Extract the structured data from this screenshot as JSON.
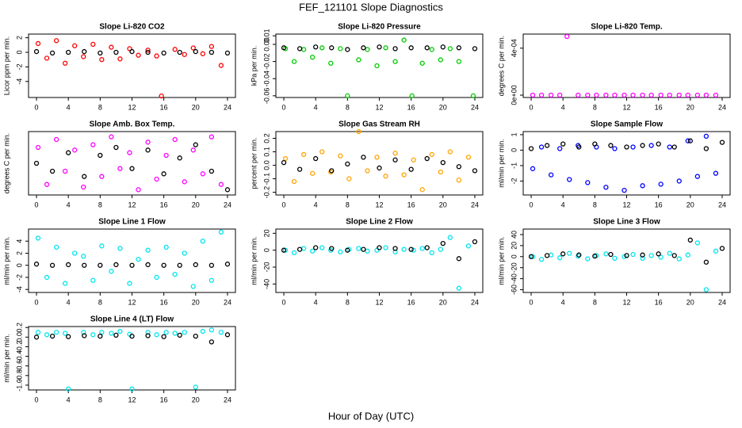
{
  "title": "FEF_121101  Slope Diagnostics",
  "xlabel": "Hour of Day (UTC)",
  "chart_data": [
    {
      "type": "scatter",
      "title": "Slope Li-820 CO2",
      "ylabel": "Licor ppm per min.",
      "xlim": [
        -1,
        25
      ],
      "xticks": [
        0,
        4,
        8,
        12,
        16,
        20,
        24
      ],
      "ylim": [
        -6.2,
        2.5
      ],
      "yticks": [
        -4,
        -2,
        0,
        2
      ],
      "series": [
        {
          "color": "#ff0000",
          "x": [
            0.2,
            1.3,
            2.5,
            3.6,
            4.8,
            5.9,
            7.1,
            8.2,
            9.4,
            10.5,
            11.7,
            12.8,
            14,
            15.1,
            15.7,
            17.4,
            18.6,
            19.7,
            20.9,
            22,
            23.2
          ],
          "values": [
            1.2,
            -0.8,
            1.6,
            -1.5,
            0.9,
            -0.6,
            1.1,
            -1.0,
            0.7,
            -0.9,
            0.5,
            -0.4,
            0.3,
            -0.5,
            -6.0,
            0.4,
            -0.3,
            0.6,
            -0.2,
            0.8,
            -1.8
          ]
        },
        {
          "color": "#000000",
          "x": [
            0,
            2,
            4,
            6,
            8,
            10,
            12,
            14,
            16,
            18,
            20,
            22,
            24
          ],
          "values": [
            0.1,
            -0.1,
            0,
            0.1,
            -0.1,
            0,
            0.1,
            0,
            -0.1,
            0,
            0.1,
            0,
            -0.1
          ]
        }
      ]
    },
    {
      "type": "scatter",
      "title": "Slope Li-820 Pressure",
      "ylabel": "kPa per min.",
      "xlim": [
        -1,
        25
      ],
      "xticks": [
        0,
        4,
        8,
        12,
        16,
        20,
        24
      ],
      "ylim": [
        -0.062,
        0.012
      ],
      "yticks": [
        0.01,
        {
          "value": 0,
          "label": "0.00"
        },
        -0.02,
        -0.04,
        -0.06
      ],
      "series": [
        {
          "color": "#00cc00",
          "x": [
            0.2,
            1.3,
            2.5,
            3.6,
            4.8,
            5.9,
            7.1,
            8.0,
            9.4,
            10.5,
            11.7,
            12.8,
            14,
            15.1,
            16.1,
            17.4,
            18.6,
            19.7,
            20.9,
            22,
            23.8
          ],
          "values": [
            -0.005,
            -0.02,
            -0.006,
            -0.015,
            -0.004,
            -0.022,
            -0.005,
            -0.06,
            -0.018,
            -0.006,
            -0.025,
            -0.004,
            -0.02,
            0.005,
            -0.06,
            -0.022,
            -0.006,
            -0.018,
            -0.005,
            -0.02,
            -0.06
          ]
        },
        {
          "color": "#000000",
          "x": [
            0,
            2,
            4,
            6,
            8,
            10,
            12,
            14,
            16,
            18,
            20,
            22,
            24
          ],
          "values": [
            -0.004,
            -0.005,
            -0.003,
            -0.004,
            -0.006,
            -0.004,
            -0.003,
            -0.005,
            -0.004,
            -0.004,
            -0.003,
            -0.004,
            -0.005
          ]
        }
      ]
    },
    {
      "type": "scatter",
      "title": "Slope Li-820 Temp.",
      "ylabel": "degrees C per min.",
      "xlim": [
        -1,
        25
      ],
      "xticks": [
        0,
        4,
        8,
        12,
        16,
        20,
        24
      ],
      "ylim": [
        -2e-05,
        0.00052
      ],
      "yticks": [
        {
          "value": 0,
          "label": "0e+00"
        },
        {
          "value": 0.0004,
          "label": "4e-04"
        }
      ],
      "series": [
        {
          "color": "#ff00ff",
          "x": [
            0.2,
            1.3,
            2.5,
            3.6,
            4.5,
            5.9,
            7.1,
            8.2,
            9.4,
            10.5,
            11.7,
            12.8,
            14,
            15.1,
            16.3,
            17.4,
            18.6,
            19.7,
            20.9,
            22,
            23.2
          ],
          "values": [
            0,
            0,
            0,
            0,
            0.0005,
            0,
            0,
            0,
            0,
            0,
            0,
            0,
            0,
            0,
            0,
            0,
            0,
            0,
            0,
            0,
            0
          ]
        }
      ]
    },
    {
      "type": "scatter",
      "title": "Slope Amb. Box Temp.",
      "ylabel": "degrees C per min.",
      "xlim": [
        -1,
        25
      ],
      "xticks": [
        0,
        4,
        8,
        12,
        16,
        20,
        24
      ],
      "ylim": [
        -0.12,
        0.12
      ],
      "series": [
        {
          "color": "#ff00ff",
          "x": [
            0.2,
            1.3,
            2.5,
            3.6,
            4.8,
            5.9,
            7.1,
            8.2,
            9.4,
            10.5,
            11.7,
            12.8,
            14,
            15.1,
            16.3,
            17.4,
            18.6,
            19.7,
            20.9,
            22,
            23.2
          ],
          "values": [
            0.06,
            -0.08,
            0.09,
            -0.03,
            0.05,
            -0.09,
            0.07,
            -0.05,
            0.1,
            -0.02,
            0.04,
            -0.1,
            0.08,
            -0.06,
            0.03,
            0.09,
            -0.07,
            0.05,
            -0.04,
            0.1,
            -0.08
          ]
        },
        {
          "color": "#000000",
          "x": [
            0,
            2,
            4,
            6,
            8,
            10,
            12,
            14,
            16,
            18,
            20,
            22,
            24
          ],
          "values": [
            0,
            -0.03,
            0.04,
            -0.05,
            0.03,
            0.06,
            -0.02,
            0.05,
            -0.04,
            0.02,
            0.07,
            -0.03,
            -0.1
          ]
        }
      ]
    },
    {
      "type": "scatter",
      "title": "Slope Gas Stream RH",
      "ylabel": "percent per min.",
      "xlim": [
        -1,
        25
      ],
      "xticks": [
        0,
        4,
        8,
        12,
        16,
        20,
        24
      ],
      "ylim": [
        -0.22,
        0.25
      ],
      "yticks": [
        -0.2,
        -0.1,
        {
          "value": 0,
          "label": "0.0"
        },
        0.1,
        0.2
      ],
      "series": [
        {
          "color": "#ffa500",
          "x": [
            0.2,
            1.3,
            2.5,
            3.6,
            4.8,
            5.9,
            7.1,
            8.2,
            9.4,
            10.5,
            11.7,
            12.8,
            14,
            15.1,
            16.3,
            17.4,
            18.6,
            19.7,
            20.9,
            22,
            23.2
          ],
          "values": [
            0.05,
            -0.12,
            0.08,
            -0.06,
            0.1,
            -0.05,
            0.07,
            -0.1,
            0.25,
            -0.04,
            0.06,
            -0.08,
            0.09,
            -0.07,
            0.04,
            -0.18,
            0.08,
            -0.05,
            0.1,
            -0.11,
            0.06
          ]
        },
        {
          "color": "#000000",
          "x": [
            0,
            2,
            4,
            6,
            8,
            10,
            12,
            14,
            16,
            18,
            20,
            22,
            24
          ],
          "values": [
            0.02,
            -0.03,
            0.05,
            -0.04,
            0.01,
            0.06,
            -0.02,
            0.04,
            -0.03,
            0.05,
            0.02,
            -0.01,
            -0.04
          ]
        }
      ]
    },
    {
      "type": "scatter",
      "title": "Slope Sample Flow",
      "ylabel": "ml/min per min.",
      "xlim": [
        -1,
        25
      ],
      "xticks": [
        0,
        4,
        8,
        12,
        16,
        20,
        24
      ],
      "ylim": [
        -2.9,
        1.2
      ],
      "yticks": [
        -2,
        -1,
        0,
        1
      ],
      "series": [
        {
          "color": "#0000ff",
          "x": [
            0.2,
            1.3,
            2.5,
            3.6,
            4.8,
            5.9,
            7.1,
            8.2,
            9.4,
            10.5,
            11.7,
            12.8,
            14,
            15.1,
            16.3,
            17.4,
            18.6,
            19.7,
            20.9,
            22,
            23.2
          ],
          "values": [
            -1.2,
            0.2,
            -1.6,
            0.1,
            -1.9,
            0.3,
            -2.1,
            0.2,
            -2.4,
            0.1,
            -2.6,
            0.2,
            -2.3,
            0.3,
            -2.2,
            0.2,
            -2.0,
            0.6,
            -1.7,
            0.9,
            -1.5
          ]
        },
        {
          "color": "#000000",
          "x": [
            0,
            2,
            4,
            6,
            8,
            10,
            12,
            14,
            16,
            18,
            20,
            22,
            24
          ],
          "values": [
            0.1,
            0.3,
            0.4,
            0.2,
            0.4,
            0.3,
            0.2,
            0.3,
            0.4,
            0.2,
            0.6,
            0.1,
            0.5
          ]
        }
      ]
    },
    {
      "type": "scatter",
      "title": "Slope Line 1 Flow",
      "ylabel": "ml/min per min.",
      "xlim": [
        -1,
        25
      ],
      "xticks": [
        0,
        4,
        8,
        12,
        16,
        20,
        24
      ],
      "ylim": [
        -4.5,
        6
      ],
      "yticks": [
        -4,
        -2,
        0,
        2,
        4
      ],
      "series": [
        {
          "color": "#00e5ee",
          "x": [
            0.2,
            1.3,
            2.5,
            3.6,
            4.8,
            5.9,
            7.1,
            8.2,
            9.4,
            10.5,
            11.7,
            12.8,
            14,
            15.1,
            16.3,
            17.4,
            18.6,
            19.7,
            20.9,
            22,
            23.2
          ],
          "values": [
            4.5,
            -2,
            3,
            -3,
            2,
            1.5,
            -2.5,
            3.2,
            -1,
            2.8,
            -3,
            1,
            2.5,
            -2,
            3,
            -1.5,
            2,
            -3.5,
            4,
            -2.5,
            5.5
          ]
        },
        {
          "color": "#000000",
          "x": [
            0,
            2,
            4,
            6,
            8,
            10,
            12,
            14,
            16,
            18,
            20,
            22,
            24
          ],
          "values": [
            0.2,
            0,
            0.1,
            0,
            0,
            0.1,
            0,
            0.1,
            0,
            0,
            0.1,
            0,
            0.2
          ]
        }
      ]
    },
    {
      "type": "scatter",
      "title": "Slope Line 2 Flow",
      "ylabel": "ml/min per min.",
      "xlim": [
        -1,
        25
      ],
      "xticks": [
        0,
        4,
        8,
        12,
        16,
        20,
        24
      ],
      "ylim": [
        -50,
        25
      ],
      "yticks": [
        -40,
        -20,
        0,
        20
      ],
      "series": [
        {
          "color": "#00e5ee",
          "x": [
            0.2,
            1.3,
            2.5,
            3.6,
            4.8,
            5.9,
            7.1,
            8.2,
            9.4,
            10.5,
            11.7,
            12.8,
            14,
            15.1,
            16.3,
            17.4,
            18.6,
            19.7,
            20.9,
            22,
            23.2
          ],
          "values": [
            0,
            -3,
            2,
            -1,
            3,
            0,
            -2,
            1,
            2,
            -1,
            0,
            3,
            -2,
            1,
            0,
            2,
            -3,
            1,
            15,
            -45,
            5
          ]
        },
        {
          "color": "#000000",
          "x": [
            0,
            2,
            4,
            6,
            8,
            10,
            12,
            14,
            16,
            18,
            20,
            22,
            24
          ],
          "values": [
            0,
            1,
            3,
            2,
            0,
            1,
            3,
            2,
            1,
            3,
            8,
            -10,
            10
          ]
        }
      ]
    },
    {
      "type": "scatter",
      "title": "Slope Line 3 Flow",
      "ylabel": "ml/min per min.",
      "xlim": [
        -1,
        25
      ],
      "xticks": [
        0,
        4,
        8,
        12,
        16,
        20,
        24
      ],
      "ylim": [
        -65,
        50
      ],
      "yticks": [
        -60,
        -40,
        -20,
        0,
        20,
        40
      ],
      "series": [
        {
          "color": "#00e5ee",
          "x": [
            0.2,
            1.3,
            2.5,
            3.6,
            4.8,
            5.9,
            7.1,
            8.2,
            9.4,
            10.5,
            11.7,
            12.8,
            14,
            15.1,
            16.3,
            17.4,
            18.6,
            19.7,
            20.9,
            22,
            23.2
          ],
          "values": [
            0,
            -5,
            3,
            -2,
            6,
            1,
            -4,
            2,
            5,
            -3,
            0,
            4,
            -3,
            2,
            -1,
            6,
            -4,
            3,
            25,
            -60,
            10
          ]
        },
        {
          "color": "#000000",
          "x": [
            0,
            2,
            4,
            6,
            8,
            10,
            12,
            14,
            16,
            18,
            20,
            22,
            24
          ],
          "values": [
            0,
            2,
            5,
            3,
            1,
            4,
            2,
            3,
            5,
            2,
            30,
            -10,
            15
          ]
        }
      ]
    },
    {
      "type": "scatter",
      "title": "Slope Line 4 (LT) Flow",
      "ylabel": "ml/min per min.",
      "xlim": [
        -1,
        25
      ],
      "xticks": [
        0,
        4,
        8,
        12,
        16,
        20,
        24
      ],
      "ylim": [
        -1.1,
        0.22
      ],
      "yticks": [
        {
          "value": -1,
          "label": "-1.0"
        },
        -0.8,
        -0.6,
        -0.4,
        -0.2,
        {
          "value": 0,
          "label": "0.0"
        },
        0.2
      ],
      "series": [
        {
          "color": "#00e5ee",
          "x": [
            0.2,
            1.3,
            2.5,
            3.6,
            4,
            5.9,
            7.1,
            8.2,
            9.4,
            10.5,
            11.7,
            12,
            14,
            15.1,
            16.3,
            17.4,
            18.6,
            20,
            20.9,
            22,
            23.2
          ],
          "values": [
            0.1,
            0.05,
            0.1,
            0.08,
            -1.08,
            0.1,
            0.05,
            0.1,
            0.08,
            0.12,
            0.06,
            -1.08,
            0.1,
            0.05,
            0.1,
            0.08,
            0.1,
            -1.04,
            0.12,
            0.15,
            0.1
          ]
        },
        {
          "color": "#000000",
          "x": [
            0,
            2,
            4,
            6,
            8,
            10,
            12,
            14,
            16,
            18,
            20,
            22,
            24
          ],
          "values": [
            0,
            0.02,
            0.01,
            0.03,
            0.02,
            0.04,
            0.02,
            0.03,
            0.01,
            0.04,
            0.02,
            -0.1,
            0.05
          ]
        }
      ]
    }
  ]
}
